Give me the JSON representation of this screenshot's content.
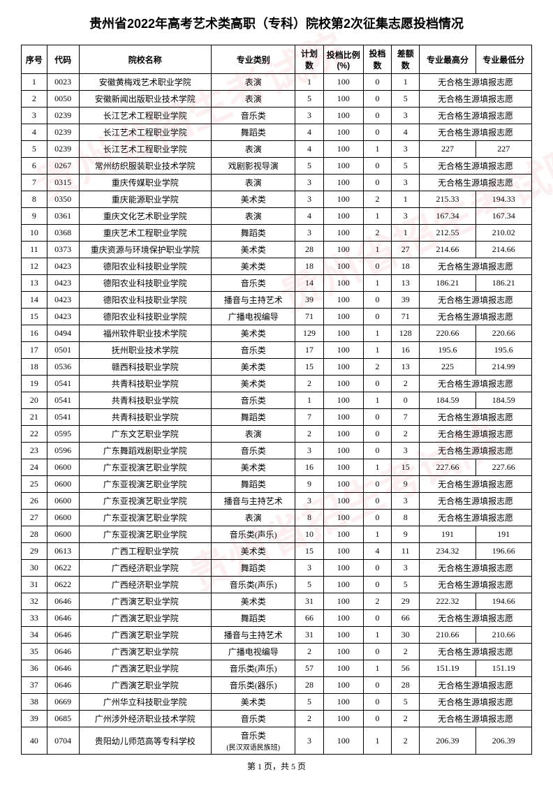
{
  "title": "贵州省2022年高考艺术类高职（专科）院校第2次征集志愿投档情况",
  "watermark": "贵州省招生考试院",
  "headers": {
    "seq": "序号",
    "code": "代码",
    "school": "院校名称",
    "major": "专业类别",
    "plan": "计划数",
    "ratio": "投档比例(%)",
    "filed": "投档数",
    "diff": "差额数",
    "high": "专业最高分",
    "low": "专业最低分"
  },
  "no_qualified_text": "无合格生源填报志愿",
  "rows": [
    {
      "seq": "1",
      "code": "0023",
      "school": "安徽黄梅戏艺术职业学院",
      "major": "表演",
      "plan": "1",
      "ratio": "100",
      "filed": "0",
      "diff": "1",
      "high": null,
      "low": null
    },
    {
      "seq": "2",
      "code": "0050",
      "school": "安徽新闻出版职业技术学院",
      "major": "表演",
      "plan": "5",
      "ratio": "100",
      "filed": "0",
      "diff": "5",
      "high": null,
      "low": null
    },
    {
      "seq": "3",
      "code": "0239",
      "school": "长江艺术工程职业学院",
      "major": "音乐类",
      "plan": "3",
      "ratio": "100",
      "filed": "0",
      "diff": "3",
      "high": null,
      "low": null
    },
    {
      "seq": "4",
      "code": "0239",
      "school": "长江艺术工程职业学院",
      "major": "舞蹈类",
      "plan": "4",
      "ratio": "100",
      "filed": "0",
      "diff": "4",
      "high": null,
      "low": null
    },
    {
      "seq": "5",
      "code": "0239",
      "school": "长江艺术工程职业学院",
      "major": "表演",
      "plan": "4",
      "ratio": "100",
      "filed": "1",
      "diff": "3",
      "high": "227",
      "low": "227"
    },
    {
      "seq": "6",
      "code": "0267",
      "school": "常州纺织服装职业技术学院",
      "major": "戏剧影视导演",
      "plan": "5",
      "ratio": "100",
      "filed": "0",
      "diff": "5",
      "high": null,
      "low": null
    },
    {
      "seq": "7",
      "code": "0315",
      "school": "重庆传媒职业学院",
      "major": "表演",
      "plan": "3",
      "ratio": "100",
      "filed": "0",
      "diff": "3",
      "high": null,
      "low": null
    },
    {
      "seq": "8",
      "code": "0350",
      "school": "重庆能源职业学院",
      "major": "美术类",
      "plan": "3",
      "ratio": "100",
      "filed": "2",
      "diff": "1",
      "high": "215.33",
      "low": "194.33"
    },
    {
      "seq": "9",
      "code": "0361",
      "school": "重庆文化艺术职业学院",
      "major": "表演",
      "plan": "4",
      "ratio": "100",
      "filed": "1",
      "diff": "3",
      "high": "167.34",
      "low": "167.34"
    },
    {
      "seq": "10",
      "code": "0368",
      "school": "重庆艺术工程职业学院",
      "major": "舞蹈类",
      "plan": "3",
      "ratio": "100",
      "filed": "2",
      "diff": "1",
      "high": "212.55",
      "low": "210.02"
    },
    {
      "seq": "11",
      "code": "0373",
      "school": "重庆资源与环境保护职业学院",
      "major": "美术类",
      "plan": "28",
      "ratio": "100",
      "filed": "1",
      "diff": "27",
      "high": "214.66",
      "low": "214.66"
    },
    {
      "seq": "12",
      "code": "0423",
      "school": "德阳农业科技职业学院",
      "major": "美术类",
      "plan": "18",
      "ratio": "100",
      "filed": "0",
      "diff": "18",
      "high": null,
      "low": null
    },
    {
      "seq": "13",
      "code": "0423",
      "school": "德阳农业科技职业学院",
      "major": "音乐类",
      "plan": "14",
      "ratio": "100",
      "filed": "1",
      "diff": "13",
      "high": "186.21",
      "low": "186.21"
    },
    {
      "seq": "14",
      "code": "0423",
      "school": "德阳农业科技职业学院",
      "major": "播音与主持艺术",
      "plan": "39",
      "ratio": "100",
      "filed": "0",
      "diff": "39",
      "high": null,
      "low": null
    },
    {
      "seq": "15",
      "code": "0423",
      "school": "德阳农业科技职业学院",
      "major": "广播电视编导",
      "plan": "71",
      "ratio": "100",
      "filed": "0",
      "diff": "71",
      "high": null,
      "low": null
    },
    {
      "seq": "16",
      "code": "0494",
      "school": "福州软件职业技术学院",
      "major": "美术类",
      "plan": "129",
      "ratio": "100",
      "filed": "1",
      "diff": "128",
      "high": "220.66",
      "low": "220.66"
    },
    {
      "seq": "17",
      "code": "0501",
      "school": "抚州职业技术学院",
      "major": "音乐类",
      "plan": "17",
      "ratio": "100",
      "filed": "1",
      "diff": "16",
      "high": "195.6",
      "low": "195.6"
    },
    {
      "seq": "18",
      "code": "0536",
      "school": "赣西科技职业学院",
      "major": "美术类",
      "plan": "15",
      "ratio": "100",
      "filed": "2",
      "diff": "13",
      "high": "225",
      "low": "214.99"
    },
    {
      "seq": "19",
      "code": "0541",
      "school": "共青科技职业学院",
      "major": "美术类",
      "plan": "2",
      "ratio": "100",
      "filed": "0",
      "diff": "2",
      "high": null,
      "low": null
    },
    {
      "seq": "20",
      "code": "0541",
      "school": "共青科技职业学院",
      "major": "音乐类",
      "plan": "1",
      "ratio": "100",
      "filed": "1",
      "diff": "0",
      "high": "184.59",
      "low": "184.59"
    },
    {
      "seq": "21",
      "code": "0541",
      "school": "共青科技职业学院",
      "major": "舞蹈类",
      "plan": "7",
      "ratio": "100",
      "filed": "0",
      "diff": "7",
      "high": null,
      "low": null
    },
    {
      "seq": "22",
      "code": "0595",
      "school": "广东文艺职业学院",
      "major": "表演",
      "plan": "2",
      "ratio": "100",
      "filed": "0",
      "diff": "2",
      "high": null,
      "low": null
    },
    {
      "seq": "23",
      "code": "0596",
      "school": "广东舞蹈戏剧职业学院",
      "major": "音乐类",
      "plan": "3",
      "ratio": "100",
      "filed": "0",
      "diff": "3",
      "high": null,
      "low": null
    },
    {
      "seq": "24",
      "code": "0600",
      "school": "广东亚视演艺职业学院",
      "major": "美术类",
      "plan": "16",
      "ratio": "100",
      "filed": "1",
      "diff": "15",
      "high": "227.66",
      "low": "227.66"
    },
    {
      "seq": "25",
      "code": "0600",
      "school": "广东亚视演艺职业学院",
      "major": "舞蹈类",
      "plan": "9",
      "ratio": "100",
      "filed": "0",
      "diff": "9",
      "high": null,
      "low": null
    },
    {
      "seq": "26",
      "code": "0600",
      "school": "广东亚视演艺职业学院",
      "major": "播音与主持艺术",
      "plan": "3",
      "ratio": "100",
      "filed": "0",
      "diff": "3",
      "high": null,
      "low": null
    },
    {
      "seq": "27",
      "code": "0600",
      "school": "广东亚视演艺职业学院",
      "major": "表演",
      "plan": "8",
      "ratio": "100",
      "filed": "0",
      "diff": "8",
      "high": null,
      "low": null
    },
    {
      "seq": "28",
      "code": "0600",
      "school": "广东亚视演艺职业学院",
      "major": "音乐类(声乐)",
      "plan": "10",
      "ratio": "100",
      "filed": "1",
      "diff": "9",
      "high": "191",
      "low": "191"
    },
    {
      "seq": "29",
      "code": "0613",
      "school": "广西工程职业学院",
      "major": "美术类",
      "plan": "15",
      "ratio": "100",
      "filed": "4",
      "diff": "11",
      "high": "234.32",
      "low": "196.66"
    },
    {
      "seq": "30",
      "code": "0622",
      "school": "广西经济职业学院",
      "major": "舞蹈类",
      "plan": "3",
      "ratio": "100",
      "filed": "0",
      "diff": "3",
      "high": null,
      "low": null
    },
    {
      "seq": "31",
      "code": "0622",
      "school": "广西经济职业学院",
      "major": "音乐类(声乐)",
      "plan": "5",
      "ratio": "100",
      "filed": "0",
      "diff": "5",
      "high": null,
      "low": null
    },
    {
      "seq": "32",
      "code": "0646",
      "school": "广西演艺职业学院",
      "major": "美术类",
      "plan": "31",
      "ratio": "100",
      "filed": "2",
      "diff": "29",
      "high": "222.32",
      "low": "194.66"
    },
    {
      "seq": "33",
      "code": "0646",
      "school": "广西演艺职业学院",
      "major": "舞蹈类",
      "plan": "66",
      "ratio": "100",
      "filed": "0",
      "diff": "66",
      "high": null,
      "low": null
    },
    {
      "seq": "34",
      "code": "0646",
      "school": "广西演艺职业学院",
      "major": "播音与主持艺术",
      "plan": "31",
      "ratio": "100",
      "filed": "1",
      "diff": "30",
      "high": "210.66",
      "low": "210.66"
    },
    {
      "seq": "35",
      "code": "0646",
      "school": "广西演艺职业学院",
      "major": "广播电视编导",
      "plan": "2",
      "ratio": "100",
      "filed": "0",
      "diff": "2",
      "high": null,
      "low": null
    },
    {
      "seq": "36",
      "code": "0646",
      "school": "广西演艺职业学院",
      "major": "音乐类(声乐)",
      "plan": "57",
      "ratio": "100",
      "filed": "1",
      "diff": "56",
      "high": "151.19",
      "low": "151.19"
    },
    {
      "seq": "37",
      "code": "0646",
      "school": "广西演艺职业学院",
      "major": "音乐类(器乐)",
      "plan": "28",
      "ratio": "100",
      "filed": "0",
      "diff": "28",
      "high": null,
      "low": null
    },
    {
      "seq": "38",
      "code": "0669",
      "school": "广州华立科技职业学院",
      "major": "美术类",
      "plan": "5",
      "ratio": "100",
      "filed": "0",
      "diff": "5",
      "high": null,
      "low": null
    },
    {
      "seq": "39",
      "code": "0685",
      "school": "广州涉外经济职业技术学院",
      "major": "音乐类",
      "plan": "2",
      "ratio": "100",
      "filed": "0",
      "diff": "2",
      "high": null,
      "low": null
    },
    {
      "seq": "40",
      "code": "0704",
      "school": "贵阳幼儿师范高等专科学校",
      "major": "音乐类\n(民汉双语民族班)",
      "plan": "3",
      "ratio": "100",
      "filed": "1",
      "diff": "2",
      "high": "206.39",
      "low": "206.39"
    }
  ],
  "pager": "第 1 页，共 5 页"
}
